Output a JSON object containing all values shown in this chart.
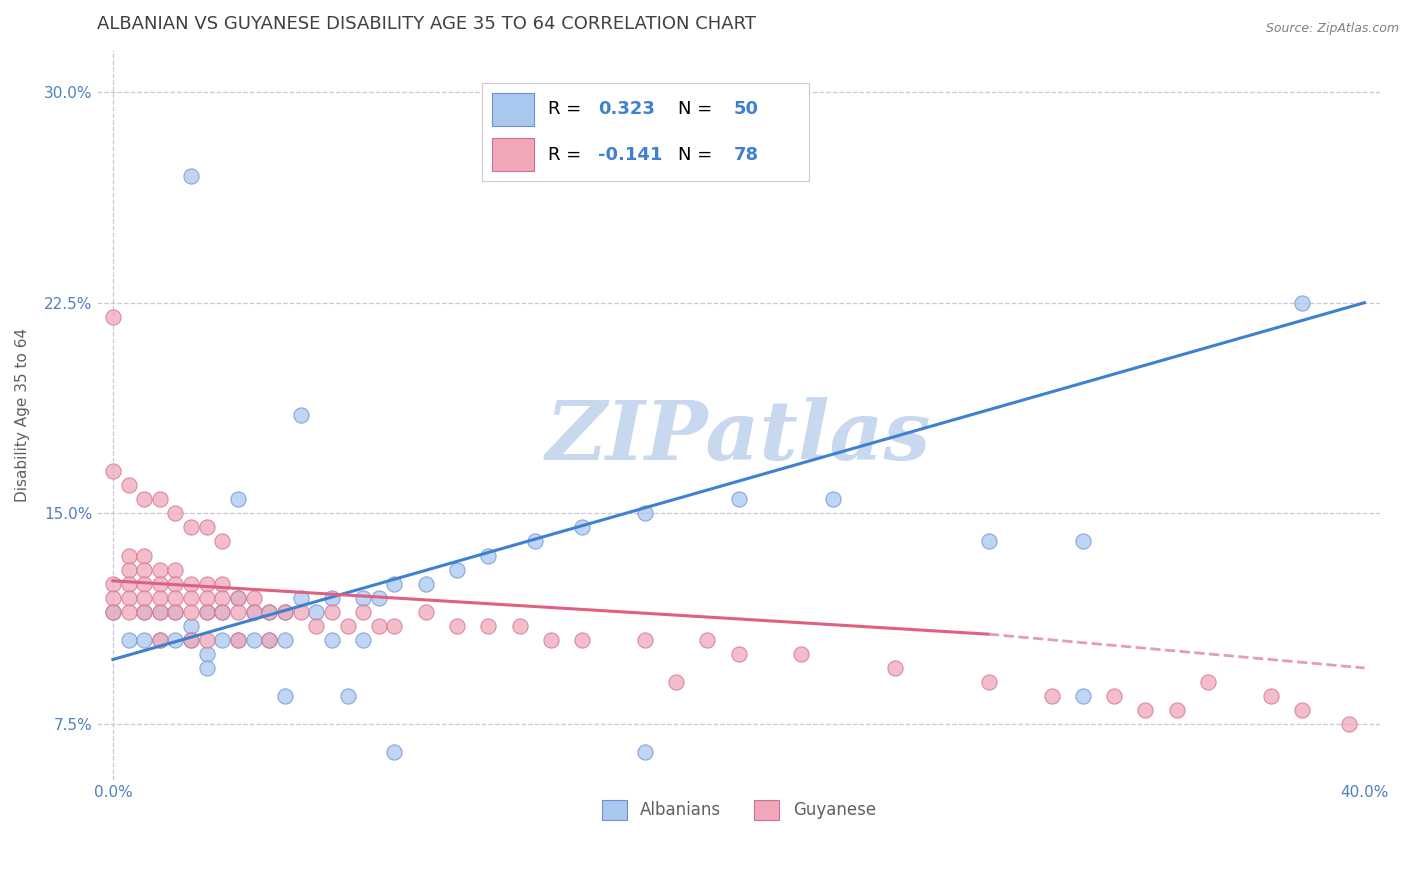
{
  "title": "ALBANIAN VS GUYANESE DISABILITY AGE 35 TO 64 CORRELATION CHART",
  "source_text": "Source: ZipAtlas.com",
  "ylabel": "Disability Age 35 to 64",
  "watermark": "ZIPatlas",
  "xlim": [
    -0.005,
    0.405
  ],
  "ylim": [
    0.055,
    0.315
  ],
  "xticks": [
    0.0,
    0.4
  ],
  "xtick_labels": [
    "0.0%",
    "40.0%"
  ],
  "yticks": [
    0.075,
    0.15,
    0.225,
    0.3
  ],
  "ytick_labels": [
    "7.5%",
    "15.0%",
    "22.5%",
    "30.0%"
  ],
  "albanian_color": "#a8c8f0",
  "guyanese_color": "#f0a8b8",
  "albanian_edge_color": "#7090d0",
  "guyanese_edge_color": "#d07090",
  "albanian_line_color": "#4080d0",
  "guyanese_line_color": "#e06080",
  "guyanese_dash_color": "#e0a0b0",
  "title_color": "#404040",
  "axis_label_color": "#606060",
  "tick_color": "#5080c0",
  "legend_label_color": "#000000",
  "legend_value_color": "#4080d0",
  "background_color": "#ffffff",
  "grid_color": "#c8c8d8",
  "watermark_color": "#c8d8ee",
  "title_fontsize": 13,
  "axis_label_fontsize": 11,
  "tick_fontsize": 11,
  "legend_fontsize": 13,
  "alb_line_x0": 0.0,
  "alb_line_y0": 0.098,
  "alb_line_x1": 0.4,
  "alb_line_y1": 0.225,
  "guy_line_x0": 0.0,
  "guy_line_y0": 0.126,
  "guy_line_x1_solid": 0.28,
  "guy_line_y1_solid": 0.107,
  "guy_line_x1_dash": 0.4,
  "guy_line_y1_dash": 0.095,
  "alb_scatter_x": [
    0.0,
    0.005,
    0.01,
    0.01,
    0.015,
    0.015,
    0.02,
    0.02,
    0.025,
    0.025,
    0.03,
    0.03,
    0.03,
    0.035,
    0.035,
    0.04,
    0.04,
    0.045,
    0.045,
    0.05,
    0.05,
    0.055,
    0.055,
    0.06,
    0.065,
    0.07,
    0.07,
    0.08,
    0.08,
    0.085,
    0.09,
    0.1,
    0.11,
    0.12,
    0.135,
    0.15,
    0.17,
    0.2,
    0.23,
    0.28,
    0.31,
    0.31,
    0.06,
    0.025,
    0.04,
    0.055,
    0.075,
    0.09,
    0.38,
    0.17
  ],
  "alb_scatter_y": [
    0.115,
    0.105,
    0.115,
    0.105,
    0.115,
    0.105,
    0.115,
    0.105,
    0.11,
    0.105,
    0.115,
    0.1,
    0.095,
    0.115,
    0.105,
    0.12,
    0.105,
    0.115,
    0.105,
    0.115,
    0.105,
    0.115,
    0.105,
    0.12,
    0.115,
    0.12,
    0.105,
    0.12,
    0.105,
    0.12,
    0.125,
    0.125,
    0.13,
    0.135,
    0.14,
    0.145,
    0.15,
    0.155,
    0.155,
    0.14,
    0.14,
    0.085,
    0.185,
    0.27,
    0.155,
    0.085,
    0.085,
    0.065,
    0.225,
    0.065
  ],
  "guy_scatter_x": [
    0.0,
    0.0,
    0.0,
    0.0,
    0.005,
    0.005,
    0.005,
    0.005,
    0.005,
    0.01,
    0.01,
    0.01,
    0.01,
    0.01,
    0.015,
    0.015,
    0.015,
    0.015,
    0.015,
    0.02,
    0.02,
    0.02,
    0.02,
    0.025,
    0.025,
    0.025,
    0.025,
    0.03,
    0.03,
    0.03,
    0.03,
    0.035,
    0.035,
    0.035,
    0.04,
    0.04,
    0.04,
    0.045,
    0.045,
    0.05,
    0.05,
    0.055,
    0.06,
    0.065,
    0.07,
    0.075,
    0.08,
    0.085,
    0.09,
    0.1,
    0.11,
    0.12,
    0.13,
    0.14,
    0.15,
    0.17,
    0.19,
    0.2,
    0.22,
    0.25,
    0.28,
    0.3,
    0.32,
    0.33,
    0.34,
    0.35,
    0.37,
    0.38,
    0.395,
    0.0,
    0.005,
    0.01,
    0.015,
    0.02,
    0.025,
    0.03,
    0.035,
    0.18
  ],
  "guy_scatter_y": [
    0.125,
    0.12,
    0.115,
    0.22,
    0.135,
    0.13,
    0.125,
    0.12,
    0.115,
    0.135,
    0.13,
    0.125,
    0.12,
    0.115,
    0.13,
    0.125,
    0.12,
    0.115,
    0.105,
    0.13,
    0.125,
    0.12,
    0.115,
    0.125,
    0.12,
    0.115,
    0.105,
    0.125,
    0.12,
    0.115,
    0.105,
    0.125,
    0.12,
    0.115,
    0.12,
    0.115,
    0.105,
    0.12,
    0.115,
    0.115,
    0.105,
    0.115,
    0.115,
    0.11,
    0.115,
    0.11,
    0.115,
    0.11,
    0.11,
    0.115,
    0.11,
    0.11,
    0.11,
    0.105,
    0.105,
    0.105,
    0.105,
    0.1,
    0.1,
    0.095,
    0.09,
    0.085,
    0.085,
    0.08,
    0.08,
    0.09,
    0.085,
    0.08,
    0.075,
    0.165,
    0.16,
    0.155,
    0.155,
    0.15,
    0.145,
    0.145,
    0.14,
    0.09
  ]
}
